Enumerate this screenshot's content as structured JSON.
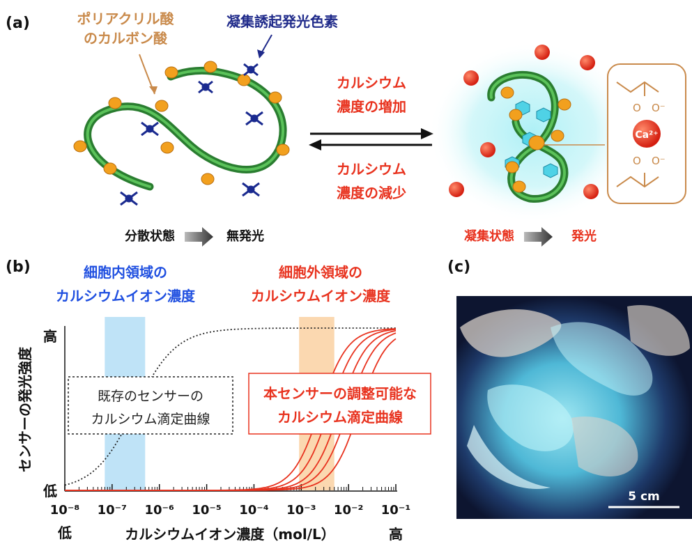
{
  "panel_a": {
    "label": "(a)",
    "callout_polymer_line1": "ポリアクリル酸",
    "callout_polymer_line2": "のカルボン酸",
    "callout_dye": "凝集誘起発光色素",
    "forward_line1": "カルシウム",
    "forward_line2": "濃度の増加",
    "reverse_line1": "カルシウム",
    "reverse_line2": "濃度の減少",
    "state_left": "分散状態",
    "result_left": "無発光",
    "state_right": "凝集状態",
    "result_right": "発光",
    "ion_label": "Ca²⁺",
    "o_label": "O",
    "ominus_label": "O⁻"
  },
  "panel_b": {
    "label": "(b)",
    "intra_line1": "細胞内領域の",
    "intra_line2": "カルシウムイオン濃度",
    "extra_line1": "細胞外領域の",
    "extra_line2": "カルシウムイオン濃度",
    "existing_line1": "既存のセンサーの",
    "existing_line2": "カルシウム滴定曲線",
    "new_line1": "本センサーの調整可能な",
    "new_line2": "カルシウム滴定曲線",
    "y_axis_label": "センサーの発光強度",
    "y_high": "高",
    "y_low": "低",
    "x_low": "低",
    "x_high": "高",
    "x_axis_label": "カルシウムイオン濃度（mol/L）",
    "x_ticks": [
      "10⁻⁸",
      "10⁻⁷",
      "10⁻⁶",
      "10⁻⁵",
      "10⁻⁴",
      "10⁻³",
      "10⁻²",
      "10⁻¹"
    ]
  },
  "chart_data": {
    "type": "line",
    "x_scale": "log",
    "xlim": [
      1e-08,
      0.1
    ],
    "ylim": [
      0,
      1
    ],
    "existing_curve_midpoint": 3e-07,
    "new_curve_midpoints": [
      0.0025,
      0.004,
      0.0065,
      0.01,
      0.017
    ],
    "intracellular_band": [
      7e-08,
      5e-07
    ],
    "extracellular_band": [
      0.0009,
      0.005
    ],
    "colors": {
      "existing": "#222222",
      "new": "#e8321e",
      "intra_band": "#bfe3f7",
      "extra_band": "#fbd8b0"
    }
  },
  "panel_c": {
    "label": "(c)",
    "scale_bar": "5 cm"
  },
  "colors": {
    "red": "#e8321e",
    "blue": "#1f4fe0",
    "navy": "#1f2a8a",
    "tan": "#c98a4b",
    "green": "#2e8b3a",
    "orange": "#f2a01e",
    "cyan": "#5fd6e8"
  }
}
